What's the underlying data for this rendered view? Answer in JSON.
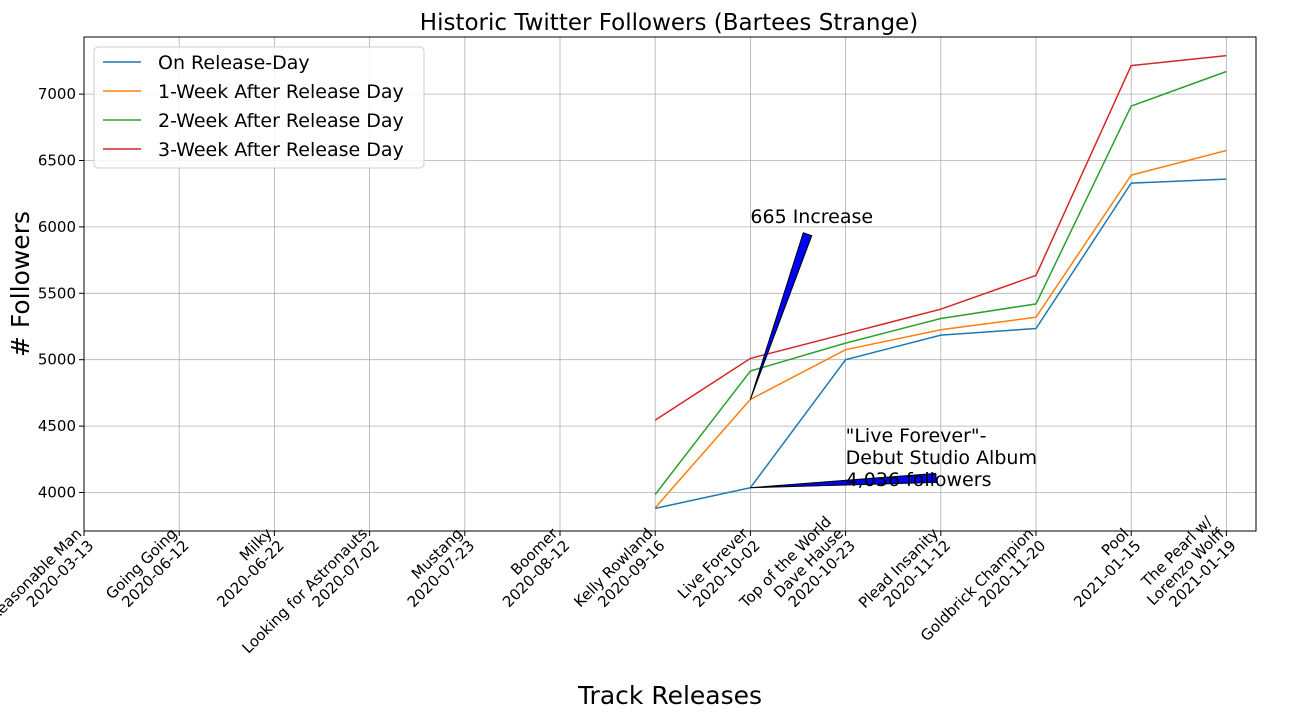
{
  "chart_data": {
    "type": "line",
    "title": "Historic Twitter Followers (Bartees Strange)",
    "xlabel": "Track Releases",
    "ylabel": "# Followers",
    "ylim": [
      3710,
      7430
    ],
    "yticks": [
      4000,
      4500,
      5000,
      5500,
      6000,
      6500,
      7000
    ],
    "grid": true,
    "legend_position": "top-left",
    "categories": [
      [
        "A Reasonable Man",
        "2020-03-13"
      ],
      [
        "Going Going",
        "2020-06-12"
      ],
      [
        "Milky",
        "2020-06-22"
      ],
      [
        "Looking for Astronauts",
        "2020-07-02"
      ],
      [
        "Mustang",
        "2020-07-23"
      ],
      [
        "Boomer",
        "2020-08-12"
      ],
      [
        "Kelly Rowland",
        "2020-09-16"
      ],
      [
        "Live Forever",
        "2020-10-02"
      ],
      [
        "Top of the World",
        "Dave Hause",
        "2020-10-23"
      ],
      [
        "Plead Insanity",
        "2020-11-12"
      ],
      [
        "Goldbrick Champion",
        "2020-11-20"
      ],
      [
        "Pool",
        "2021-01-15"
      ],
      [
        "The Pearl w/",
        "Lorenzo Wolff",
        "2021-01-19"
      ]
    ],
    "series": [
      {
        "name": "On Release-Day",
        "color": "#1f77b4",
        "values": [
          null,
          null,
          null,
          null,
          null,
          null,
          3880,
          4036,
          5000,
          5185,
          5235,
          6330,
          6360
        ]
      },
      {
        "name": "1-Week After Release Day",
        "color": "#ff7f0e",
        "values": [
          null,
          null,
          null,
          null,
          null,
          null,
          3885,
          4701,
          5075,
          5225,
          5320,
          6390,
          6575
        ]
      },
      {
        "name": "2-Week After Release Day",
        "color": "#2ca02c",
        "values": [
          null,
          null,
          null,
          null,
          null,
          null,
          3985,
          4915,
          5125,
          5310,
          5420,
          6910,
          7170
        ]
      },
      {
        "name": "3-Week After Release Day",
        "color": "#d62728",
        "values": [
          null,
          null,
          null,
          null,
          null,
          null,
          4545,
          5010,
          5195,
          5380,
          5635,
          7215,
          7290
        ]
      }
    ],
    "annotations": [
      {
        "lines": [
          "665 Increase"
        ],
        "point": [
          7,
          4701
        ],
        "text_at": [
          7,
          6030
        ],
        "arrow_tip": [
          7.6,
          5945
        ]
      },
      {
        "lines": [
          "\"Live Forever\"-",
          "Debut Studio Album",
          "4,036 followers"
        ],
        "point": [
          7,
          4036
        ],
        "text_at": [
          8,
          4380
        ],
        "arrow_tip": [
          8.95,
          4110
        ]
      }
    ]
  }
}
